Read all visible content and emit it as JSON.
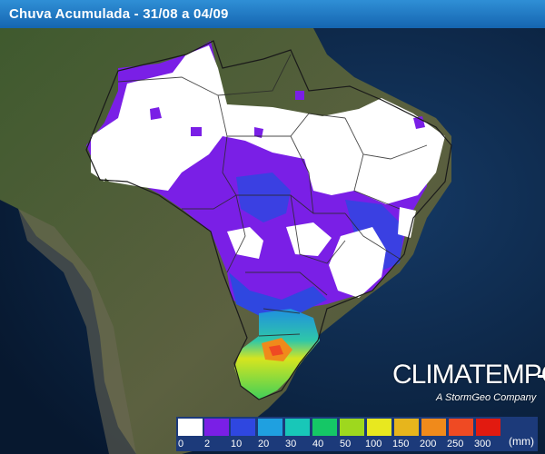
{
  "header": {
    "title": "Chuva Acumulada - 31/08 a 04/09"
  },
  "brand": {
    "name": "CLIMATEMPO",
    "tagline": "A StormGeo Company"
  },
  "legend": {
    "unit": "(mm)",
    "ticks": [
      "0",
      "2",
      "10",
      "20",
      "30",
      "40",
      "50",
      "100",
      "150",
      "200",
      "250",
      "300"
    ],
    "colors": [
      "#ffffff",
      "#7a1fe6",
      "#2f47e0",
      "#1fa0e0",
      "#18c7b8",
      "#15c766",
      "#9ed81e",
      "#e8e81f",
      "#e7b51c",
      "#f08a1b",
      "#ef4a23",
      "#e21a10"
    ]
  },
  "map": {
    "land_color": "#4d5c3a",
    "ocean_color": "#0c2446",
    "border_color": "#2a2a2a"
  }
}
